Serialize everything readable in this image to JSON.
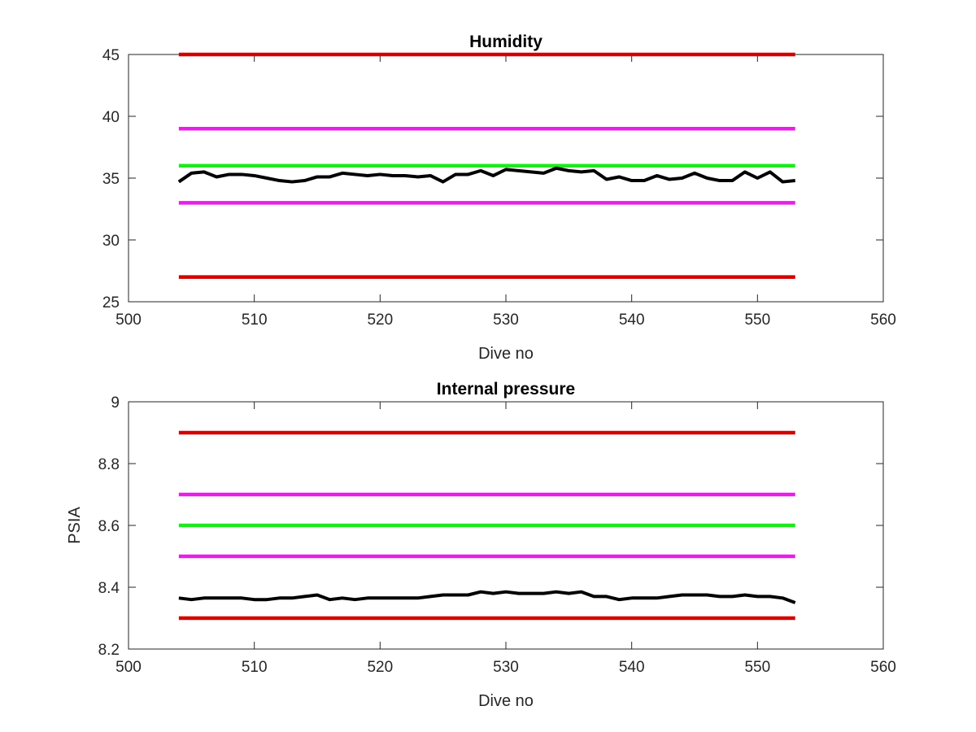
{
  "chart_data": [
    {
      "type": "line",
      "title": "Humidity",
      "xlabel": "Dive no",
      "ylabel": "",
      "xlim": [
        500,
        560
      ],
      "ylim": [
        25,
        45
      ],
      "xticks": [
        500,
        510,
        520,
        530,
        540,
        550,
        560
      ],
      "yticks": [
        25,
        30,
        35,
        40,
        45
      ],
      "grid": false,
      "reference_lines": [
        {
          "y": 45,
          "x_range": [
            504,
            553
          ],
          "color": "#d40000"
        },
        {
          "y": 39,
          "x_range": [
            504,
            553
          ],
          "color": "#e81ee8"
        },
        {
          "y": 36,
          "x_range": [
            504,
            553
          ],
          "color": "#1ee81e"
        },
        {
          "y": 33,
          "x_range": [
            504,
            553
          ],
          "color": "#e81ee8"
        },
        {
          "y": 27,
          "x_range": [
            504,
            553
          ],
          "color": "#d40000"
        }
      ],
      "series": [
        {
          "color": "#000000",
          "x": [
            504,
            505,
            506,
            507,
            508,
            509,
            510,
            511,
            512,
            513,
            514,
            515,
            516,
            517,
            518,
            519,
            520,
            521,
            522,
            523,
            524,
            525,
            526,
            527,
            528,
            529,
            530,
            531,
            532,
            533,
            534,
            535,
            536,
            537,
            538,
            539,
            540,
            541,
            542,
            543,
            544,
            545,
            546,
            547,
            548,
            549,
            550,
            551,
            552,
            553
          ],
          "y": [
            34.7,
            35.4,
            35.5,
            35.1,
            35.3,
            35.3,
            35.2,
            35.0,
            34.8,
            34.7,
            34.8,
            35.1,
            35.1,
            35.4,
            35.3,
            35.2,
            35.3,
            35.2,
            35.2,
            35.1,
            35.2,
            34.7,
            35.3,
            35.3,
            35.6,
            35.2,
            35.7,
            35.6,
            35.5,
            35.4,
            35.8,
            35.6,
            35.5,
            35.6,
            34.9,
            35.1,
            34.8,
            34.8,
            35.2,
            34.9,
            35.0,
            35.4,
            35.0,
            34.8,
            34.8,
            35.5,
            35.0,
            35.5,
            34.7,
            34.8
          ]
        }
      ]
    },
    {
      "type": "line",
      "title": "Internal pressure",
      "xlabel": "Dive no",
      "ylabel": "PSIA",
      "xlim": [
        500,
        560
      ],
      "ylim": [
        8.2,
        9.0
      ],
      "xticks": [
        500,
        510,
        520,
        530,
        540,
        550,
        560
      ],
      "yticks": [
        8.2,
        8.4,
        8.6,
        8.8,
        9
      ],
      "ytick_labels": [
        "8.2",
        "8.4",
        "8.6",
        "8.8",
        "9"
      ],
      "grid": false,
      "reference_lines": [
        {
          "y": 8.9,
          "x_range": [
            504,
            553
          ],
          "color": "#d40000"
        },
        {
          "y": 8.7,
          "x_range": [
            504,
            553
          ],
          "color": "#e81ee8"
        },
        {
          "y": 8.6,
          "x_range": [
            504,
            553
          ],
          "color": "#1ee81e"
        },
        {
          "y": 8.5,
          "x_range": [
            504,
            553
          ],
          "color": "#e81ee8"
        },
        {
          "y": 8.3,
          "x_range": [
            504,
            553
          ],
          "color": "#d40000"
        }
      ],
      "series": [
        {
          "color": "#000000",
          "x": [
            504,
            505,
            506,
            507,
            508,
            509,
            510,
            511,
            512,
            513,
            514,
            515,
            516,
            517,
            518,
            519,
            520,
            521,
            522,
            523,
            524,
            525,
            526,
            527,
            528,
            529,
            530,
            531,
            532,
            533,
            534,
            535,
            536,
            537,
            538,
            539,
            540,
            541,
            542,
            543,
            544,
            545,
            546,
            547,
            548,
            549,
            550,
            551,
            552,
            553
          ],
          "y": [
            8.365,
            8.36,
            8.365,
            8.365,
            8.365,
            8.365,
            8.36,
            8.36,
            8.365,
            8.365,
            8.37,
            8.375,
            8.36,
            8.365,
            8.36,
            8.365,
            8.365,
            8.365,
            8.365,
            8.365,
            8.37,
            8.375,
            8.375,
            8.375,
            8.385,
            8.38,
            8.385,
            8.38,
            8.38,
            8.38,
            8.385,
            8.38,
            8.385,
            8.37,
            8.37,
            8.36,
            8.365,
            8.365,
            8.365,
            8.37,
            8.375,
            8.375,
            8.375,
            8.37,
            8.37,
            8.375,
            8.37,
            8.37,
            8.365,
            8.35
          ]
        }
      ]
    }
  ]
}
